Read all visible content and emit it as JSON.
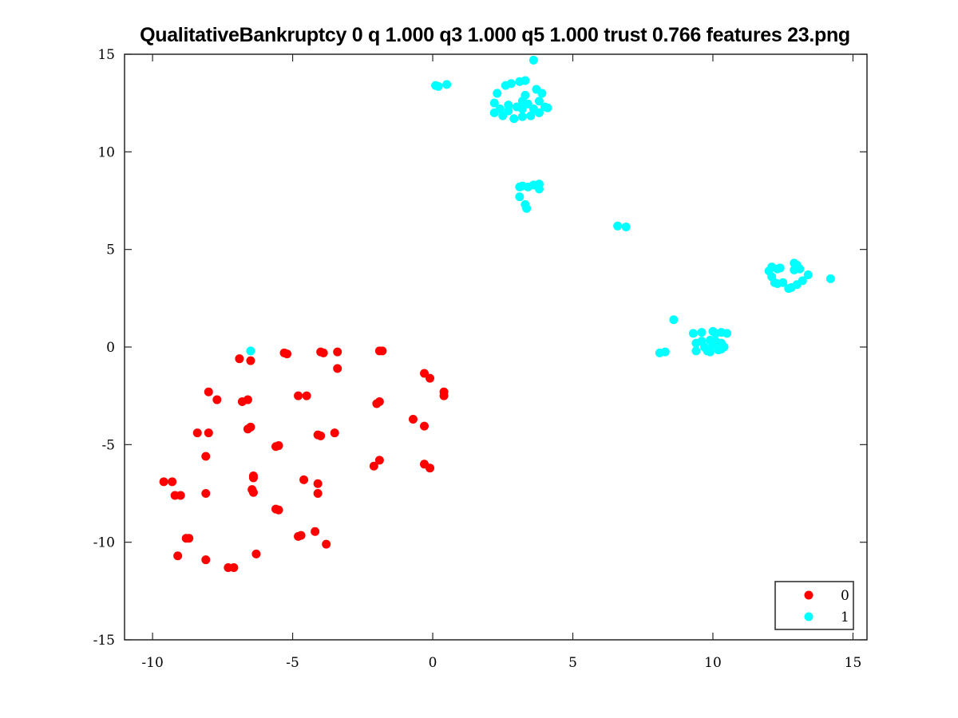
{
  "chart_data": {
    "type": "scatter",
    "title": "QualitativeBankruptcy 0 q 1.000 q3 1.000 q5 1.000 trust 0.766 features 23.png",
    "xlabel": "",
    "ylabel": "",
    "xlim": [
      -11,
      15.5
    ],
    "ylim": [
      -15,
      15
    ],
    "xticks": [
      -10,
      -5,
      0,
      5,
      10,
      15
    ],
    "yticks": [
      -15,
      -10,
      -5,
      0,
      5,
      10,
      15
    ],
    "xtick_labels": [
      "-10",
      "-5",
      "0",
      "5",
      "10",
      "15"
    ],
    "ytick_labels": [
      "-15",
      "-10",
      "-5",
      "0",
      "5",
      "10",
      "15"
    ],
    "grid": false,
    "legend_position": "bottom-right",
    "series": [
      {
        "name": "0",
        "color": "#ff0000",
        "points": [
          [
            -6.9,
            -0.6
          ],
          [
            -6.5,
            -0.7
          ],
          [
            -5.3,
            -0.3
          ],
          [
            -5.2,
            -0.35
          ],
          [
            -4.0,
            -0.25
          ],
          [
            -3.9,
            -0.3
          ],
          [
            -3.4,
            -0.25
          ],
          [
            -1.9,
            -0.2
          ],
          [
            -1.8,
            -0.2
          ],
          [
            -8.0,
            -2.3
          ],
          [
            -7.7,
            -2.7
          ],
          [
            -6.8,
            -2.8
          ],
          [
            -6.6,
            -2.7
          ],
          [
            -4.8,
            -2.5
          ],
          [
            -4.5,
            -2.5
          ],
          [
            -3.4,
            -1.1
          ],
          [
            -0.3,
            -1.35
          ],
          [
            -0.1,
            -1.6
          ],
          [
            0.4,
            -2.3
          ],
          [
            0.4,
            -2.5
          ],
          [
            -2.0,
            -2.9
          ],
          [
            -1.9,
            -2.8
          ],
          [
            -0.7,
            -3.7
          ],
          [
            -0.3,
            -4.05
          ],
          [
            -8.4,
            -4.4
          ],
          [
            -8.0,
            -4.4
          ],
          [
            -8.1,
            -5.6
          ],
          [
            -6.6,
            -4.2
          ],
          [
            -6.5,
            -4.1
          ],
          [
            -5.6,
            -5.1
          ],
          [
            -5.5,
            -5.05
          ],
          [
            -4.1,
            -4.5
          ],
          [
            -4.0,
            -4.55
          ],
          [
            -3.5,
            -4.4
          ],
          [
            -2.1,
            -6.1
          ],
          [
            -1.9,
            -5.8
          ],
          [
            -0.3,
            -6.0
          ],
          [
            -0.1,
            -6.2
          ],
          [
            -9.6,
            -6.9
          ],
          [
            -9.3,
            -6.9
          ],
          [
            -9.2,
            -7.6
          ],
          [
            -9.0,
            -7.6
          ],
          [
            -8.1,
            -7.5
          ],
          [
            -6.4,
            -6.6
          ],
          [
            -6.4,
            -6.7
          ],
          [
            -6.45,
            -7.3
          ],
          [
            -6.4,
            -7.45
          ],
          [
            -5.6,
            -8.3
          ],
          [
            -5.5,
            -8.35
          ],
          [
            -4.6,
            -6.8
          ],
          [
            -4.1,
            -7.0
          ],
          [
            -4.1,
            -7.5
          ],
          [
            -8.8,
            -9.8
          ],
          [
            -8.7,
            -9.8
          ],
          [
            -9.1,
            -10.7
          ],
          [
            -8.1,
            -10.9
          ],
          [
            -7.3,
            -11.3
          ],
          [
            -7.1,
            -11.3
          ],
          [
            -6.3,
            -10.6
          ],
          [
            -4.8,
            -9.7
          ],
          [
            -4.7,
            -9.65
          ],
          [
            -4.2,
            -9.45
          ],
          [
            -3.8,
            -10.1
          ]
        ]
      },
      {
        "name": "1",
        "color": "#00ffff",
        "points": [
          [
            -6.5,
            -0.2
          ],
          [
            3.6,
            14.7
          ],
          [
            0.1,
            13.4
          ],
          [
            0.2,
            13.35
          ],
          [
            0.5,
            13.45
          ],
          [
            2.3,
            13.0
          ],
          [
            2.6,
            13.4
          ],
          [
            2.8,
            13.5
          ],
          [
            3.1,
            13.6
          ],
          [
            3.3,
            13.65
          ],
          [
            3.7,
            13.2
          ],
          [
            3.9,
            13.0
          ],
          [
            2.2,
            12.5
          ],
          [
            2.4,
            12.2
          ],
          [
            2.7,
            12.4
          ],
          [
            3.0,
            12.3
          ],
          [
            3.2,
            12.6
          ],
          [
            3.4,
            12.45
          ],
          [
            3.6,
            12.2
          ],
          [
            3.8,
            12.6
          ],
          [
            4.0,
            12.3
          ],
          [
            4.1,
            12.25
          ],
          [
            2.2,
            12.0
          ],
          [
            2.5,
            11.85
          ],
          [
            2.7,
            12.1
          ],
          [
            2.9,
            11.7
          ],
          [
            3.2,
            11.8
          ],
          [
            3.5,
            11.85
          ],
          [
            3.8,
            12.0
          ],
          [
            3.3,
            12.9
          ],
          [
            3.2,
            12.2
          ],
          [
            3.1,
            8.2
          ],
          [
            3.2,
            8.25
          ],
          [
            3.4,
            8.2
          ],
          [
            3.6,
            8.3
          ],
          [
            3.8,
            8.35
          ],
          [
            3.8,
            8.1
          ],
          [
            3.1,
            7.7
          ],
          [
            3.3,
            7.3
          ],
          [
            3.35,
            7.1
          ],
          [
            6.6,
            6.2
          ],
          [
            6.9,
            6.15
          ],
          [
            12.0,
            3.9
          ],
          [
            12.1,
            4.1
          ],
          [
            12.3,
            4.0
          ],
          [
            12.4,
            4.05
          ],
          [
            12.9,
            4.3
          ],
          [
            13.0,
            4.2
          ],
          [
            12.9,
            3.95
          ],
          [
            13.1,
            4.0
          ],
          [
            13.4,
            3.7
          ],
          [
            12.1,
            3.6
          ],
          [
            12.2,
            3.3
          ],
          [
            12.3,
            3.25
          ],
          [
            12.5,
            3.3
          ],
          [
            12.7,
            3.0
          ],
          [
            12.8,
            3.05
          ],
          [
            13.0,
            3.2
          ],
          [
            13.2,
            3.4
          ],
          [
            14.2,
            3.5
          ],
          [
            8.6,
            1.4
          ],
          [
            8.1,
            -0.3
          ],
          [
            8.3,
            -0.25
          ],
          [
            9.3,
            0.7
          ],
          [
            9.6,
            0.75
          ],
          [
            10.0,
            0.8
          ],
          [
            10.1,
            0.7
          ],
          [
            10.3,
            0.75
          ],
          [
            10.5,
            0.7
          ],
          [
            9.4,
            0.2
          ],
          [
            9.6,
            0.3
          ],
          [
            9.9,
            0.35
          ],
          [
            10.1,
            0.3
          ],
          [
            10.3,
            0.2
          ],
          [
            10.4,
            0.0
          ],
          [
            9.4,
            -0.2
          ],
          [
            9.8,
            -0.2
          ],
          [
            9.9,
            -0.25
          ],
          [
            10.2,
            -0.15
          ],
          [
            10.3,
            -0.1
          ],
          [
            9.7,
            0.0
          ],
          [
            10.0,
            0.1
          ]
        ]
      }
    ]
  }
}
